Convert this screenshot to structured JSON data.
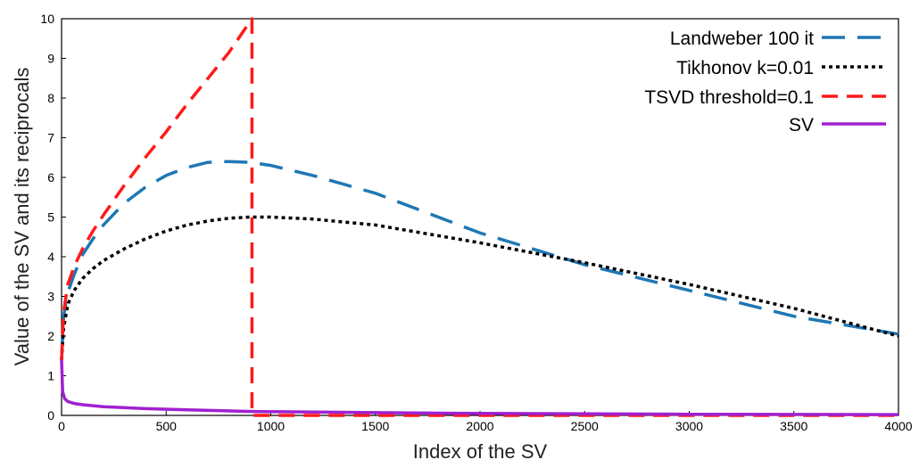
{
  "chart_data": {
    "type": "line",
    "xlabel": "Index of the SV",
    "ylabel": "Value of the SV and its reciprocals",
    "xlim": [
      0,
      4000
    ],
    "ylim": [
      0,
      10
    ],
    "xticks": [
      "0",
      "500",
      "1000",
      "1500",
      "2000",
      "2500",
      "3000",
      "3500",
      "4000"
    ],
    "yticks": [
      "0",
      "1",
      "2",
      "3",
      "4",
      "5",
      "6",
      "7",
      "8",
      "9",
      "10"
    ],
    "grid": false,
    "legend_position": "top-right",
    "series": [
      {
        "name": "Landweber 100 it",
        "color": "#1f77b4",
        "style": "long-dash",
        "x": [
          0,
          10,
          30,
          60,
          100,
          150,
          200,
          300,
          400,
          500,
          600,
          700,
          800,
          900,
          1000,
          1200,
          1500,
          2000,
          2500,
          3000,
          3500,
          4000
        ],
        "y": [
          1.4,
          2.5,
          3.1,
          3.55,
          4.05,
          4.45,
          4.8,
          5.35,
          5.75,
          6.05,
          6.25,
          6.38,
          6.4,
          6.38,
          6.3,
          6.05,
          5.6,
          4.6,
          3.8,
          3.15,
          2.5,
          2.05
        ]
      },
      {
        "name": "Tikhonov k=0.01",
        "color": "#000000",
        "style": "dotted",
        "x": [
          0,
          10,
          30,
          60,
          100,
          150,
          200,
          300,
          400,
          500,
          600,
          700,
          800,
          900,
          1000,
          1200,
          1500,
          2000,
          2500,
          3000,
          3500,
          4000
        ],
        "y": [
          1.4,
          2.2,
          2.8,
          3.15,
          3.45,
          3.7,
          3.9,
          4.2,
          4.45,
          4.65,
          4.8,
          4.9,
          4.97,
          5.0,
          5.0,
          4.95,
          4.8,
          4.35,
          3.85,
          3.3,
          2.7,
          2.0
        ]
      },
      {
        "name": "TSVD threshold=0.1",
        "color": "#ff1a1a",
        "style": "dashed",
        "x": [
          0,
          10,
          30,
          60,
          100,
          150,
          200,
          300,
          400,
          500,
          600,
          700,
          800,
          910,
          910,
          910,
          4000
        ],
        "y": [
          1.4,
          2.6,
          3.3,
          3.75,
          4.2,
          4.65,
          5.05,
          5.8,
          6.5,
          7.15,
          7.85,
          8.5,
          9.15,
          10.0,
          10.0,
          0.0,
          0.0
        ]
      },
      {
        "name": "SV",
        "color": "#a020d0",
        "style": "solid",
        "x": [
          0,
          5,
          15,
          30,
          60,
          100,
          200,
          400,
          600,
          910,
          1500,
          2000,
          3000,
          4000
        ],
        "y": [
          1.4,
          0.6,
          0.42,
          0.35,
          0.3,
          0.27,
          0.22,
          0.17,
          0.14,
          0.1,
          0.07,
          0.05,
          0.03,
          0.02
        ]
      }
    ]
  }
}
